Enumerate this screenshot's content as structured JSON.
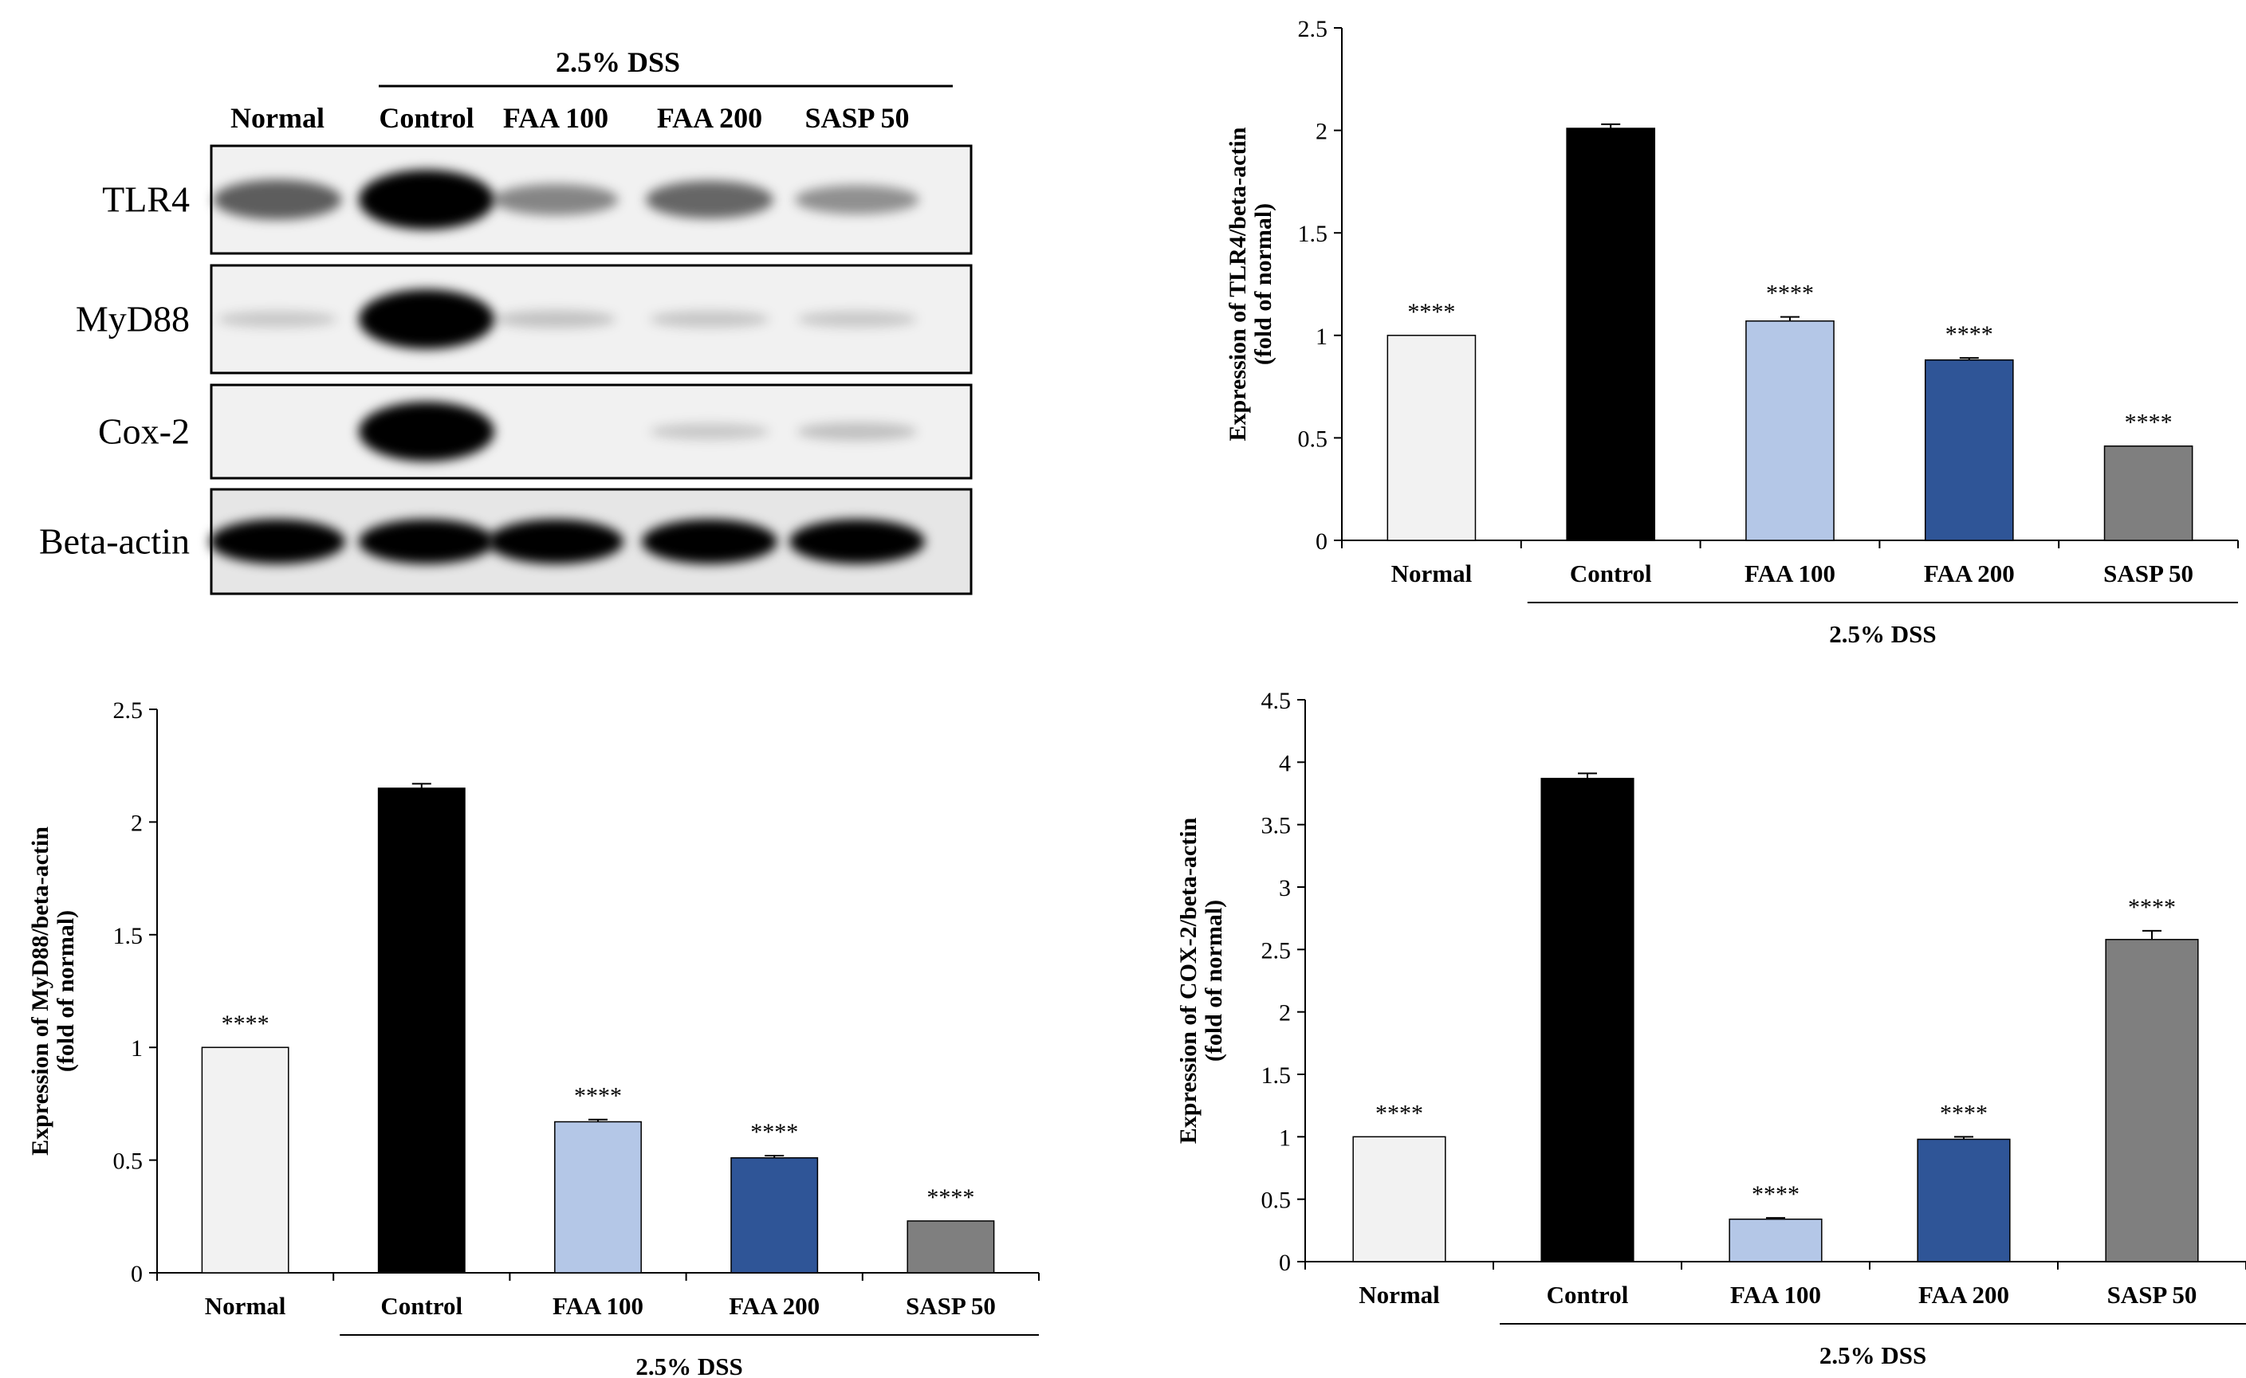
{
  "western_blot": {
    "group_label": "2.5% DSS",
    "lanes": [
      "Normal",
      "Control",
      "FAA 100",
      "FAA 200",
      "SASP 50"
    ],
    "proteins": [
      "TLR4",
      "MyD88",
      "Cox-2",
      "Beta-actin"
    ],
    "band_intensity": {
      "TLR4": [
        0.55,
        1.0,
        0.35,
        0.5,
        0.3
      ],
      "MyD88": [
        0.02,
        1.0,
        0.05,
        0.03,
        0.02
      ],
      "Cox-2": [
        0.0,
        1.0,
        0.0,
        0.02,
        0.06
      ],
      "Beta-actin": [
        1.0,
        1.0,
        1.0,
        1.0,
        1.0
      ]
    }
  },
  "chart_data": [
    {
      "type": "bar",
      "title": "",
      "ylabel_line1": "Expression  of TLR4/beta-actin",
      "ylabel_line2": "(fold of normal)",
      "xlabel": "",
      "group_label": "2.5% DSS",
      "categories": [
        "Normal",
        "Control",
        "FAA 100",
        "FAA 200",
        "SASP 50"
      ],
      "values": [
        1.0,
        2.01,
        1.07,
        0.88,
        0.46
      ],
      "errors": [
        0.0,
        0.02,
        0.02,
        0.01,
        0.0
      ],
      "significance": [
        "****",
        "",
        "****",
        "****",
        "****"
      ],
      "colors": [
        "#f2f2f2",
        "#000000",
        "#b4c7e7",
        "#2f5597",
        "#7f7f7f"
      ],
      "ylim": [
        0,
        2.5
      ],
      "yticks": [
        "0",
        "0.5",
        "1",
        "1.5",
        "2",
        "2.5"
      ]
    },
    {
      "type": "bar",
      "title": "",
      "ylabel_line1": "Expression  of MyD88/beta-actin",
      "ylabel_line2": "(fold of normal)",
      "xlabel": "",
      "group_label": "2.5% DSS",
      "categories": [
        "Normal",
        "Control",
        "FAA 100",
        "FAA 200",
        "SASP 50"
      ],
      "values": [
        1.0,
        2.15,
        0.67,
        0.51,
        0.23
      ],
      "errors": [
        0.0,
        0.02,
        0.01,
        0.01,
        0.0
      ],
      "significance": [
        "****",
        "",
        "****",
        "****",
        "****"
      ],
      "colors": [
        "#f2f2f2",
        "#000000",
        "#b4c7e7",
        "#2f5597",
        "#7f7f7f"
      ],
      "ylim": [
        0,
        2.5
      ],
      "yticks": [
        "0",
        "0.5",
        "1",
        "1.5",
        "2",
        "2.5"
      ]
    },
    {
      "type": "bar",
      "title": "",
      "ylabel_line1": "Expression  of COX-2/beta-actin",
      "ylabel_line2": "(fold of normal)",
      "xlabel": "",
      "group_label": "2.5% DSS",
      "categories": [
        "Normal",
        "Control",
        "FAA 100",
        "FAA 200",
        "SASP 50"
      ],
      "values": [
        1.0,
        3.87,
        0.34,
        0.98,
        2.58
      ],
      "errors": [
        0.0,
        0.04,
        0.01,
        0.02,
        0.07
      ],
      "significance": [
        "****",
        "",
        "****",
        "****",
        "****"
      ],
      "colors": [
        "#f2f2f2",
        "#000000",
        "#b4c7e7",
        "#2f5597",
        "#7f7f7f"
      ],
      "ylim": [
        0,
        4.5
      ],
      "yticks": [
        "0",
        "0.5",
        "1",
        "1.5",
        "2",
        "2.5",
        "3",
        "3.5",
        "4",
        "4.5"
      ]
    }
  ]
}
